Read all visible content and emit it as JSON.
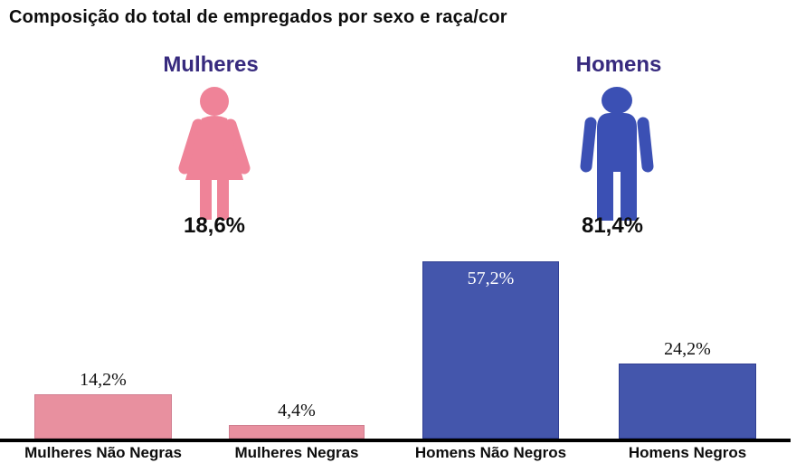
{
  "title": "Composição do total de empregados por sexo e raça/cor",
  "colors": {
    "pink_bar": "#e8909f",
    "blue_bar": "#4456ac",
    "pink_icon": "#ef8398",
    "blue_icon": "#3b50b4",
    "header_purple": "#372a7e",
    "axis_black": "#000000",
    "inside_label_white": "#ffffff"
  },
  "groups": [
    {
      "label": "Mulheres",
      "value": 18.6,
      "value_label": "18,6%",
      "icon": "woman-icon"
    },
    {
      "label": "Homens",
      "value": 81.4,
      "value_label": "81,4%",
      "icon": "man-icon"
    }
  ],
  "chart_data": {
    "type": "bar",
    "title": "Composição do total de empregados por sexo e raça/cor",
    "categories": [
      "Mulheres Não Negras",
      "Mulheres Negras",
      "Homens Não Negros",
      "Homens Negros"
    ],
    "values": [
      14.2,
      4.4,
      57.2,
      24.2
    ],
    "value_labels": [
      "14,2%",
      "4,4%",
      "57,2%",
      "24,2%"
    ],
    "bar_colors": [
      "pink",
      "pink",
      "blue",
      "blue"
    ],
    "value_label_inside": [
      false,
      false,
      true,
      false
    ],
    "unit": "%",
    "xlabel": "",
    "ylabel": "",
    "ylim": [
      0,
      60
    ],
    "grid": false,
    "legend": "none",
    "pictograms": [
      {
        "label": "Mulheres",
        "value": 18.6,
        "value_label": "18,6%"
      },
      {
        "label": "Homens",
        "value": 81.4,
        "value_label": "81,4%"
      }
    ]
  }
}
